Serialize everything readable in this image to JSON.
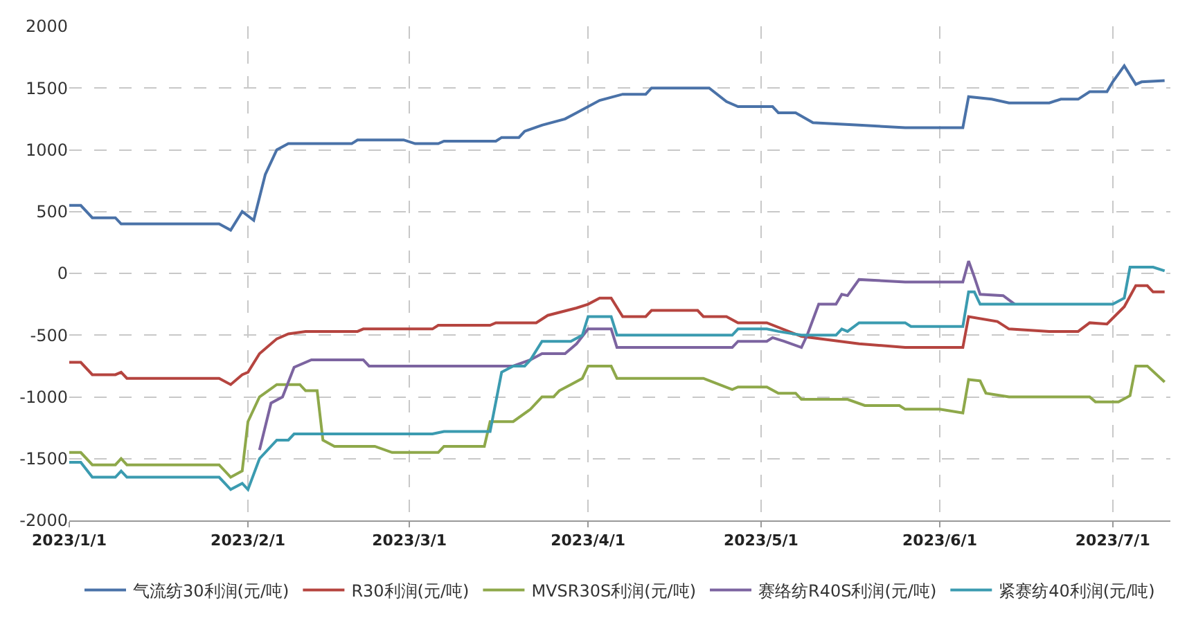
{
  "chart_data": {
    "type": "line",
    "xlim": [
      "2023-01-01",
      "2023-07-11"
    ],
    "xticks": [
      {
        "value": "2023-01-01",
        "label": "2023/1/1"
      },
      {
        "value": "2023-02-01",
        "label": "2023/2/1"
      },
      {
        "value": "2023-03-01",
        "label": "2023/3/1"
      },
      {
        "value": "2023-04-01",
        "label": "2023/4/1"
      },
      {
        "value": "2023-05-01",
        "label": "2023/5/1"
      },
      {
        "value": "2023-06-01",
        "label": "2023/6/1"
      },
      {
        "value": "2023-07-01",
        "label": "2023/7/1"
      }
    ],
    "ylim": [
      -2000,
      2000
    ],
    "yticks": [
      -2000,
      -1500,
      -1000,
      -500,
      0,
      500,
      1000,
      1500,
      2000
    ],
    "grid": true,
    "legend": "bottom",
    "line_style": "solid",
    "series": [
      {
        "name": "气流纺30利润(元/吨)",
        "color": "#4a72a8",
        "x": [
          "2023-01-01",
          "2023-01-03",
          "2023-01-05",
          "2023-01-09",
          "2023-01-10",
          "2023-01-27",
          "2023-01-29",
          "2023-01-31",
          "2023-02-02",
          "2023-02-04",
          "2023-02-06",
          "2023-02-08",
          "2023-02-19",
          "2023-02-20",
          "2023-02-28",
          "2023-03-02",
          "2023-03-06",
          "2023-03-07",
          "2023-03-16",
          "2023-03-17",
          "2023-03-20",
          "2023-03-21",
          "2023-03-24",
          "2023-03-28",
          "2023-03-30",
          "2023-04-03",
          "2023-04-07",
          "2023-04-11",
          "2023-04-12",
          "2023-04-22",
          "2023-04-25",
          "2023-04-27",
          "2023-05-03",
          "2023-05-04",
          "2023-05-07",
          "2023-05-10",
          "2023-05-18",
          "2023-05-26",
          "2023-06-05",
          "2023-06-06",
          "2023-06-10",
          "2023-06-13",
          "2023-06-20",
          "2023-06-22",
          "2023-06-25",
          "2023-06-27",
          "2023-06-30",
          "2023-07-01",
          "2023-07-03",
          "2023-07-05",
          "2023-07-06",
          "2023-07-10"
        ],
        "values": [
          550,
          550,
          450,
          450,
          400,
          400,
          350,
          500,
          430,
          800,
          1000,
          1050,
          1050,
          1080,
          1080,
          1050,
          1050,
          1070,
          1070,
          1100,
          1100,
          1150,
          1200,
          1250,
          1300,
          1400,
          1450,
          1450,
          1500,
          1500,
          1390,
          1350,
          1350,
          1300,
          1300,
          1220,
          1200,
          1180,
          1180,
          1430,
          1410,
          1380,
          1380,
          1410,
          1410,
          1470,
          1470,
          1550,
          1680,
          1530,
          1550,
          1560
        ]
      },
      {
        "name": "R30利润(元/吨)",
        "color": "#b5443f",
        "x": [
          "2023-01-01",
          "2023-01-03",
          "2023-01-05",
          "2023-01-09",
          "2023-01-10",
          "2023-01-11",
          "2023-01-27",
          "2023-01-29",
          "2023-01-31",
          "2023-02-01",
          "2023-02-03",
          "2023-02-06",
          "2023-02-08",
          "2023-02-11",
          "2023-02-20",
          "2023-02-21",
          "2023-03-05",
          "2023-03-06",
          "2023-03-15",
          "2023-03-16",
          "2023-03-23",
          "2023-03-25",
          "2023-03-30",
          "2023-04-01",
          "2023-04-03",
          "2023-04-05",
          "2023-04-07",
          "2023-04-11",
          "2023-04-12",
          "2023-04-20",
          "2023-04-21",
          "2023-04-25",
          "2023-04-27",
          "2023-05-02",
          "2023-05-08",
          "2023-05-18",
          "2023-05-26",
          "2023-06-05",
          "2023-06-06",
          "2023-06-11",
          "2023-06-13",
          "2023-06-20",
          "2023-06-25",
          "2023-06-27",
          "2023-06-30",
          "2023-07-03",
          "2023-07-05",
          "2023-07-07",
          "2023-07-08",
          "2023-07-10"
        ],
        "values": [
          -720,
          -720,
          -820,
          -820,
          -800,
          -850,
          -850,
          -900,
          -820,
          -800,
          -650,
          -530,
          -490,
          -470,
          -470,
          -450,
          -450,
          -420,
          -420,
          -400,
          -400,
          -340,
          -280,
          -250,
          -200,
          -200,
          -350,
          -350,
          -300,
          -300,
          -350,
          -350,
          -400,
          -400,
          -510,
          -570,
          -600,
          -600,
          -350,
          -390,
          -450,
          -470,
          -470,
          -400,
          -410,
          -270,
          -100,
          -100,
          -150,
          -150
        ]
      },
      {
        "name": "MVSR30S利润(元/吨)",
        "color": "#8ea84a",
        "x": [
          "2023-01-01",
          "2023-01-03",
          "2023-01-05",
          "2023-01-09",
          "2023-01-10",
          "2023-01-11",
          "2023-01-27",
          "2023-01-29",
          "2023-01-31",
          "2023-02-01",
          "2023-02-03",
          "2023-02-06",
          "2023-02-10",
          "2023-02-11",
          "2023-02-13",
          "2023-02-14",
          "2023-02-16",
          "2023-02-23",
          "2023-02-26",
          "2023-03-06",
          "2023-03-07",
          "2023-03-14",
          "2023-03-15",
          "2023-03-19",
          "2023-03-22",
          "2023-03-24",
          "2023-03-26",
          "2023-03-27",
          "2023-03-29",
          "2023-03-31",
          "2023-04-01",
          "2023-04-05",
          "2023-04-06",
          "2023-04-21",
          "2023-04-26",
          "2023-04-27",
          "2023-05-02",
          "2023-05-04",
          "2023-05-07",
          "2023-05-08",
          "2023-05-16",
          "2023-05-19",
          "2023-05-25",
          "2023-05-26",
          "2023-06-01",
          "2023-06-05",
          "2023-06-06",
          "2023-06-08",
          "2023-06-09",
          "2023-06-13",
          "2023-06-27",
          "2023-06-28",
          "2023-07-02",
          "2023-07-04",
          "2023-07-05",
          "2023-07-07",
          "2023-07-10"
        ],
        "values": [
          -1450,
          -1450,
          -1550,
          -1550,
          -1500,
          -1550,
          -1550,
          -1650,
          -1600,
          -1200,
          -1000,
          -900,
          -900,
          -950,
          -950,
          -1350,
          -1400,
          -1400,
          -1450,
          -1450,
          -1400,
          -1400,
          -1200,
          -1200,
          -1100,
          -1000,
          -1000,
          -950,
          -900,
          -850,
          -750,
          -750,
          -850,
          -850,
          -940,
          -920,
          -920,
          -970,
          -970,
          -1020,
          -1020,
          -1070,
          -1070,
          -1100,
          -1100,
          -1130,
          -860,
          -870,
          -970,
          -1000,
          -1000,
          -1040,
          -1040,
          -990,
          -750,
          -750,
          -880
        ]
      },
      {
        "name": "赛络纺R40S利润(元/吨)",
        "color": "#7c64a0",
        "x": [
          "2023-02-03",
          "2023-02-05",
          "2023-02-07",
          "2023-02-09",
          "2023-02-12",
          "2023-02-21",
          "2023-02-22",
          "2023-03-19",
          "2023-03-22",
          "2023-03-24",
          "2023-03-28",
          "2023-03-30",
          "2023-04-01",
          "2023-04-05",
          "2023-04-06",
          "2023-04-26",
          "2023-04-27",
          "2023-05-02",
          "2023-05-03",
          "2023-05-05",
          "2023-05-08",
          "2023-05-09",
          "2023-05-11",
          "2023-05-14",
          "2023-05-15",
          "2023-05-16",
          "2023-05-18",
          "2023-05-26",
          "2023-06-05",
          "2023-06-06",
          "2023-06-07",
          "2023-06-08",
          "2023-06-12",
          "2023-06-14"
        ],
        "values": [
          -1430,
          -1050,
          -1000,
          -760,
          -700,
          -700,
          -750,
          -750,
          -700,
          -650,
          -650,
          -570,
          -450,
          -450,
          -600,
          -600,
          -550,
          -550,
          -520,
          -550,
          -600,
          -500,
          -250,
          -250,
          -170,
          -180,
          -50,
          -70,
          -70,
          100,
          -30,
          -170,
          -180,
          -250
        ]
      },
      {
        "name": "紧赛纺40利润(元/吨)",
        "color": "#3b9bb0",
        "x": [
          "2023-01-01",
          "2023-01-03",
          "2023-01-05",
          "2023-01-09",
          "2023-01-10",
          "2023-01-11",
          "2023-01-27",
          "2023-01-29",
          "2023-01-31",
          "2023-02-01",
          "2023-02-03",
          "2023-02-06",
          "2023-02-08",
          "2023-02-09",
          "2023-03-05",
          "2023-03-07",
          "2023-03-15",
          "2023-03-17",
          "2023-03-19",
          "2023-03-21",
          "2023-03-22",
          "2023-03-24",
          "2023-03-29",
          "2023-03-31",
          "2023-04-01",
          "2023-04-05",
          "2023-04-06",
          "2023-04-26",
          "2023-04-27",
          "2023-05-02",
          "2023-05-04",
          "2023-05-08",
          "2023-05-14",
          "2023-05-15",
          "2023-05-16",
          "2023-05-18",
          "2023-05-26",
          "2023-05-27",
          "2023-06-05",
          "2023-06-06",
          "2023-06-07",
          "2023-06-08",
          "2023-07-01",
          "2023-07-03",
          "2023-07-04",
          "2023-07-08",
          "2023-07-10"
        ],
        "values": [
          -1530,
          -1530,
          -1650,
          -1650,
          -1600,
          -1650,
          -1650,
          -1750,
          -1700,
          -1750,
          -1500,
          -1350,
          -1350,
          -1300,
          -1300,
          -1280,
          -1280,
          -800,
          -750,
          -750,
          -700,
          -550,
          -550,
          -500,
          -350,
          -350,
          -500,
          -500,
          -450,
          -450,
          -470,
          -500,
          -500,
          -450,
          -470,
          -400,
          -400,
          -430,
          -430,
          -150,
          -150,
          -250,
          -250,
          -200,
          50,
          50,
          20
        ]
      }
    ]
  }
}
